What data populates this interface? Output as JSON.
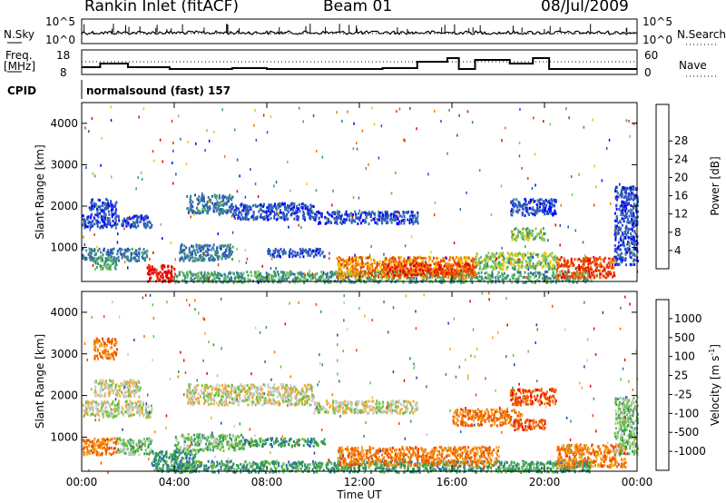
{
  "header": {
    "station": "Rankin Inlet (fitACF)",
    "beam": "Beam 01",
    "date": "08/Jul/2009"
  },
  "summary": {
    "nsky_label": "N.Sky",
    "nsky_ticks": [
      "10^5",
      "10^0"
    ],
    "nsearch_label": "N.Search",
    "nsearch_ticks": [
      "10^5",
      "10^0"
    ],
    "freq_label_top": "Freq.",
    "freq_label_bottom": "[MHz]",
    "freq_ticks": [
      "18",
      "8"
    ],
    "nave_label": "Nave",
    "nave_ticks": [
      "60",
      "0"
    ],
    "cpid_label": "CPID",
    "cpid_text": "normalsound (fast) 157"
  },
  "chart_data": [
    {
      "type": "heatmap",
      "name": "power",
      "ylabel": "Slant Range [km]",
      "xlabel": "",
      "xlim": [
        0,
        24
      ],
      "ylim": [
        180,
        4500
      ],
      "xticks": [
        "00:00",
        "04:00",
        "08:00",
        "12:00",
        "16:00",
        "20:00",
        "00:00"
      ],
      "yticks": [
        1000,
        2000,
        3000,
        4000
      ],
      "colorbar": {
        "label": "Power [dB]",
        "ticks": [
          "4",
          "8",
          "12",
          "16",
          "20",
          "24",
          "28"
        ],
        "colors": [
          "#0000ff",
          "#2a4fc6",
          "#3a74a4",
          "#3c9c6c",
          "#7ec95a",
          "#f5c500",
          "#f07a00",
          "#e53b00",
          "#e80000"
        ]
      },
      "bands": [
        {
          "x": [
            0.0,
            3.0
          ],
          "y": [
            1500,
            1800
          ],
          "level": 1
        },
        {
          "x": [
            0.3,
            1.5
          ],
          "y": [
            1800,
            2200
          ],
          "level": 1
        },
        {
          "x": [
            0.0,
            2.8
          ],
          "y": [
            700,
            1000
          ],
          "level": 2
        },
        {
          "x": [
            0.5,
            1.5
          ],
          "y": [
            500,
            800
          ],
          "level": 3
        },
        {
          "x": [
            2.8,
            4.0
          ],
          "y": [
            200,
            600
          ],
          "level": 8
        },
        {
          "x": [
            4.5,
            6.5
          ],
          "y": [
            1850,
            2300
          ],
          "level": 2
        },
        {
          "x": [
            6.5,
            10.0
          ],
          "y": [
            1700,
            2100
          ],
          "level": 1
        },
        {
          "x": [
            10.0,
            14.5
          ],
          "y": [
            1600,
            1900
          ],
          "level": 1
        },
        {
          "x": [
            4.2,
            6.5
          ],
          "y": [
            700,
            1100
          ],
          "level": 2
        },
        {
          "x": [
            8.0,
            10.5
          ],
          "y": [
            800,
            1000
          ],
          "level": 1
        },
        {
          "x": [
            4.0,
            22.0
          ],
          "y": [
            180,
            450
          ],
          "level": 3
        },
        {
          "x": [
            11.0,
            17.0
          ],
          "y": [
            300,
            800
          ],
          "level": 6
        },
        {
          "x": [
            13.0,
            17.0
          ],
          "y": [
            350,
            650
          ],
          "level": 7
        },
        {
          "x": [
            17.0,
            20.5
          ],
          "y": [
            500,
            900
          ],
          "level": 4
        },
        {
          "x": [
            18.5,
            20.5
          ],
          "y": [
            1800,
            2200
          ],
          "level": 1
        },
        {
          "x": [
            18.5,
            20.0
          ],
          "y": [
            1200,
            1500
          ],
          "level": 4
        },
        {
          "x": [
            20.5,
            23.0
          ],
          "y": [
            300,
            800
          ],
          "level": 7
        },
        {
          "x": [
            23.0,
            24.0
          ],
          "y": [
            600,
            2500
          ],
          "level": 1
        }
      ]
    },
    {
      "type": "heatmap",
      "name": "velocity",
      "ylabel": "Slant Range [km]",
      "xlabel": "Time UT",
      "xlim": [
        0,
        24
      ],
      "ylim": [
        180,
        4500
      ],
      "xticks": [
        "00:00",
        "04:00",
        "08:00",
        "12:00",
        "16:00",
        "20:00",
        "00:00"
      ],
      "yticks": [
        1000,
        2000,
        3000,
        4000
      ],
      "colorbar": {
        "label": "Velocity [m s",
        "label_sup": "-1",
        "label_end": "]",
        "ticks": [
          "1000",
          "500",
          "100",
          "25",
          "-25",
          "-100",
          "-500",
          "-1000"
        ],
        "colors": [
          "#1e3fb4",
          "#2b6fa0",
          "#2e9a5a",
          "#6cc040",
          "#c8c8c8",
          "#f5a828",
          "#f07800",
          "#ee4a00",
          "#e80000"
        ]
      },
      "bands": [
        {
          "x": [
            0.0,
            3.0
          ],
          "y": [
            1500,
            1900
          ],
          "level": 4
        },
        {
          "x": [
            0.5,
            2.5
          ],
          "y": [
            2000,
            2400
          ],
          "level": 4
        },
        {
          "x": [
            0.0,
            1.5
          ],
          "y": [
            600,
            1000
          ],
          "level": 6
        },
        {
          "x": [
            1.5,
            3.0
          ],
          "y": [
            600,
            1000
          ],
          "level": 3
        },
        {
          "x": [
            0.5,
            1.5
          ],
          "y": [
            2900,
            3400
          ],
          "level": 6
        },
        {
          "x": [
            3.0,
            5.0
          ],
          "y": [
            200,
            700
          ],
          "level": 2
        },
        {
          "x": [
            4.5,
            10.0
          ],
          "y": [
            1800,
            2300
          ],
          "level": 4
        },
        {
          "x": [
            10.0,
            14.5
          ],
          "y": [
            1600,
            1900
          ],
          "level": 4
        },
        {
          "x": [
            4.0,
            7.0
          ],
          "y": [
            700,
            1100
          ],
          "level": 3
        },
        {
          "x": [
            7.0,
            10.5
          ],
          "y": [
            800,
            1000
          ],
          "level": 2
        },
        {
          "x": [
            4.0,
            22.0
          ],
          "y": [
            180,
            450
          ],
          "level": 2
        },
        {
          "x": [
            11.0,
            18.0
          ],
          "y": [
            350,
            800
          ],
          "level": 6
        },
        {
          "x": [
            16.0,
            19.0
          ],
          "y": [
            1300,
            1700
          ],
          "level": 6
        },
        {
          "x": [
            18.5,
            20.0
          ],
          "y": [
            1200,
            1450
          ],
          "level": 7
        },
        {
          "x": [
            18.5,
            20.5
          ],
          "y": [
            1800,
            2200
          ],
          "level": 7
        },
        {
          "x": [
            20.5,
            23.5
          ],
          "y": [
            300,
            850
          ],
          "level": 6
        },
        {
          "x": [
            23.0,
            24.0
          ],
          "y": [
            600,
            2000
          ],
          "level": 3
        }
      ]
    }
  ]
}
